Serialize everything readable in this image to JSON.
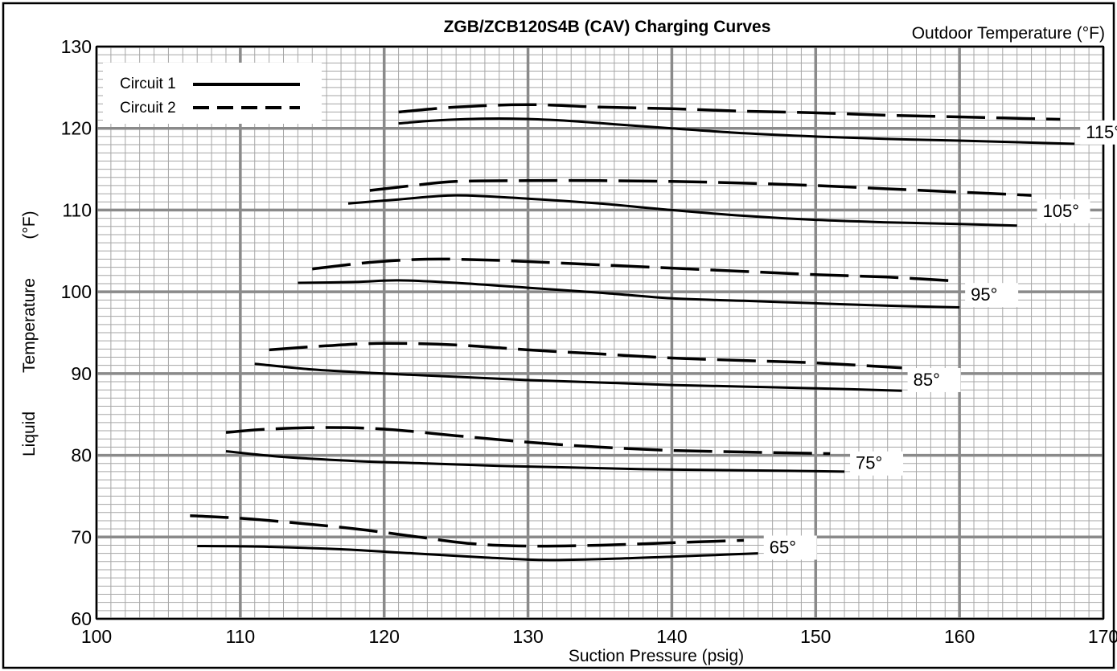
{
  "chart_data": {
    "type": "line",
    "title": "ZGB/ZCB120S4B (CAV) Charging Curves",
    "xlabel": "Suction Pressure (psig)",
    "ylabel_word1": "Liquid",
    "ylabel_word2": "Temperature",
    "ylabel_word3": "(°F)",
    "legend_title": "Outdoor Temperature (°F)",
    "xlim": [
      100,
      170
    ],
    "ylim": [
      60,
      130
    ],
    "x_ticks": [
      100,
      110,
      120,
      130,
      140,
      150,
      160,
      170
    ],
    "y_ticks": [
      60,
      70,
      80,
      90,
      100,
      110,
      120,
      130
    ],
    "grid": true,
    "legend": {
      "placement": "top-left",
      "entries": [
        {
          "label": "Circuit 1",
          "style": "solid"
        },
        {
          "label": "Circuit 2",
          "style": "dashed"
        }
      ]
    },
    "curve_groups": [
      {
        "label": "115°",
        "circuit_1": [
          [
            121,
            120.6
          ],
          [
            124,
            121.0
          ],
          [
            128,
            121.2
          ],
          [
            132,
            121.0
          ],
          [
            136,
            120.5
          ],
          [
            140,
            120.0
          ],
          [
            145,
            119.4
          ],
          [
            150,
            119.0
          ],
          [
            155,
            118.7
          ],
          [
            160,
            118.5
          ],
          [
            168,
            118.1
          ]
        ],
        "circuit_2": [
          [
            121,
            122.0
          ],
          [
            125,
            122.6
          ],
          [
            130,
            122.9
          ],
          [
            135,
            122.6
          ],
          [
            140,
            122.4
          ],
          [
            145,
            122.1
          ],
          [
            150,
            121.9
          ],
          [
            155,
            121.6
          ],
          [
            160,
            121.4
          ],
          [
            167,
            121.1
          ]
        ]
      },
      {
        "label": "105°",
        "circuit_1": [
          [
            117.5,
            110.8
          ],
          [
            121,
            111.3
          ],
          [
            125,
            111.8
          ],
          [
            130,
            111.4
          ],
          [
            135,
            110.8
          ],
          [
            140,
            110.0
          ],
          [
            145,
            109.3
          ],
          [
            150,
            108.8
          ],
          [
            155,
            108.5
          ],
          [
            160,
            108.3
          ],
          [
            164,
            108.1
          ]
        ],
        "circuit_2": [
          [
            119,
            112.4
          ],
          [
            122,
            113.0
          ],
          [
            125,
            113.5
          ],
          [
            130,
            113.6
          ],
          [
            135,
            113.6
          ],
          [
            140,
            113.5
          ],
          [
            145,
            113.3
          ],
          [
            150,
            113.0
          ],
          [
            155,
            112.6
          ],
          [
            160,
            112.2
          ],
          [
            165,
            111.8
          ]
        ]
      },
      {
        "label": "95°",
        "circuit_1": [
          [
            114,
            101.1
          ],
          [
            118,
            101.2
          ],
          [
            121,
            101.4
          ],
          [
            125,
            101.1
          ],
          [
            130,
            100.5
          ],
          [
            135,
            99.9
          ],
          [
            140,
            99.2
          ],
          [
            145,
            98.9
          ],
          [
            150,
            98.6
          ],
          [
            155,
            98.3
          ],
          [
            160,
            98.1
          ]
        ],
        "circuit_2": [
          [
            115,
            102.8
          ],
          [
            119,
            103.6
          ],
          [
            123,
            104.0
          ],
          [
            127,
            103.9
          ],
          [
            130,
            103.7
          ],
          [
            135,
            103.3
          ],
          [
            140,
            102.9
          ],
          [
            145,
            102.5
          ],
          [
            150,
            102.1
          ],
          [
            155,
            101.8
          ],
          [
            160,
            101.3
          ]
        ]
      },
      {
        "label": "85°",
        "circuit_1": [
          [
            111,
            91.2
          ],
          [
            115,
            90.5
          ],
          [
            120,
            90.0
          ],
          [
            125,
            89.6
          ],
          [
            130,
            89.2
          ],
          [
            135,
            88.9
          ],
          [
            140,
            88.6
          ],
          [
            145,
            88.4
          ],
          [
            150,
            88.2
          ],
          [
            156,
            87.9
          ]
        ],
        "circuit_2": [
          [
            112,
            92.9
          ],
          [
            116,
            93.4
          ],
          [
            120,
            93.7
          ],
          [
            125,
            93.5
          ],
          [
            130,
            92.9
          ],
          [
            135,
            92.4
          ],
          [
            140,
            91.9
          ],
          [
            145,
            91.6
          ],
          [
            150,
            91.3
          ],
          [
            156,
            90.7
          ]
        ]
      },
      {
        "label": "75°",
        "circuit_1": [
          [
            109,
            80.5
          ],
          [
            113,
            79.8
          ],
          [
            118,
            79.3
          ],
          [
            123,
            79.0
          ],
          [
            128,
            78.7
          ],
          [
            133,
            78.5
          ],
          [
            138,
            78.3
          ],
          [
            143,
            78.2
          ],
          [
            148,
            78.1
          ],
          [
            152,
            78.0
          ]
        ],
        "circuit_2": [
          [
            109,
            82.8
          ],
          [
            112,
            83.2
          ],
          [
            116,
            83.4
          ],
          [
            120,
            83.2
          ],
          [
            125,
            82.4
          ],
          [
            130,
            81.6
          ],
          [
            135,
            81.0
          ],
          [
            140,
            80.6
          ],
          [
            145,
            80.4
          ],
          [
            151,
            80.2
          ]
        ]
      },
      {
        "label": "65°",
        "circuit_1": [
          [
            107,
            68.9
          ],
          [
            112,
            68.8
          ],
          [
            117,
            68.5
          ],
          [
            122,
            68.0
          ],
          [
            127,
            67.5
          ],
          [
            131,
            67.2
          ],
          [
            135,
            67.3
          ],
          [
            140,
            67.6
          ],
          [
            143,
            67.8
          ],
          [
            146,
            68.0
          ]
        ],
        "circuit_2": [
          [
            106.5,
            72.6
          ],
          [
            110,
            72.3
          ],
          [
            114,
            71.7
          ],
          [
            118,
            71.0
          ],
          [
            122,
            70.1
          ],
          [
            126,
            69.2
          ],
          [
            130,
            68.9
          ],
          [
            135,
            69.0
          ],
          [
            140,
            69.3
          ],
          [
            145,
            69.6
          ]
        ]
      }
    ]
  }
}
